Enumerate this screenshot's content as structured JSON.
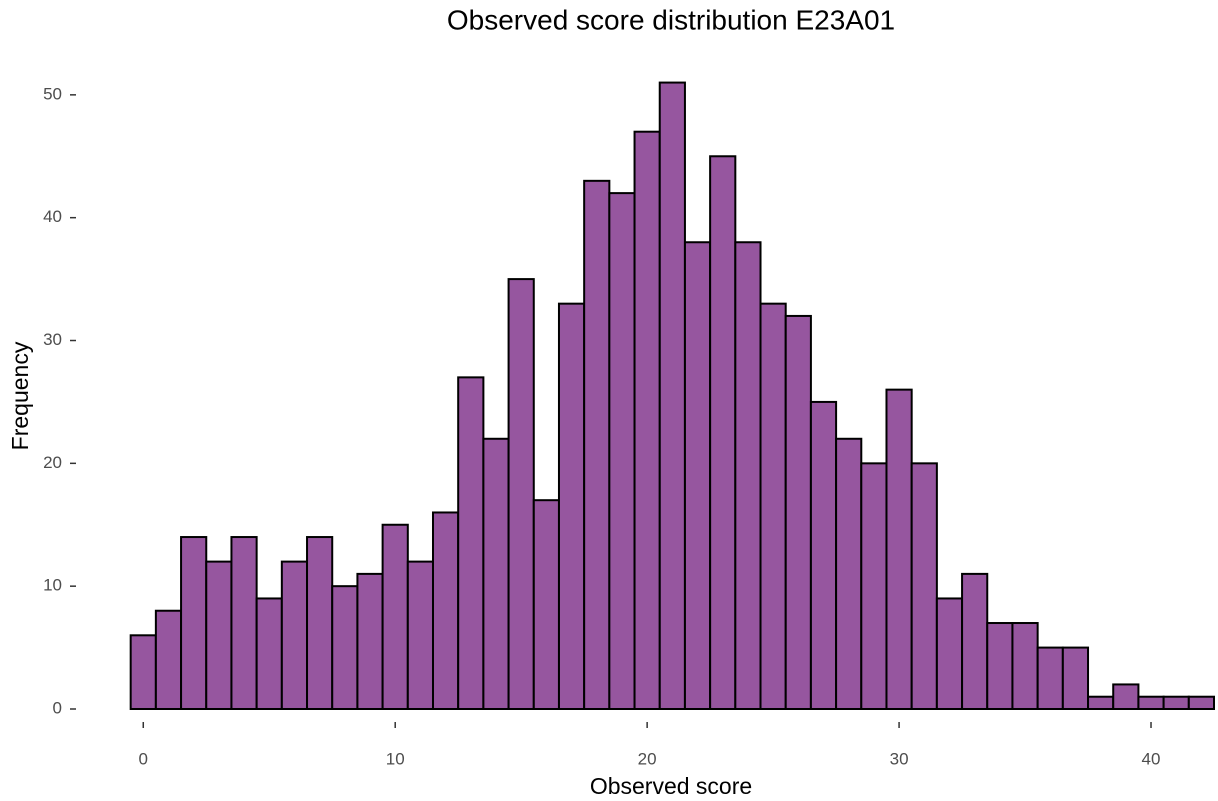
{
  "chart_data": {
    "type": "histogram",
    "title": "Observed score distribution E23A01",
    "x_label": "Observed score",
    "y_label": "Frequency",
    "bins": [
      -0.5,
      0.5,
      1.5,
      2.5,
      3.5,
      4.5,
      5.5,
      6.5,
      7.5,
      8.5,
      9.5,
      10.5,
      11.5,
      12.5,
      13.5,
      14.5,
      15.5,
      16.5,
      17.5,
      18.5,
      19.5,
      20.5,
      21.5,
      22.5,
      23.5,
      24.5,
      25.5,
      26.5,
      27.5,
      28.5,
      29.5,
      30.5,
      31.5,
      32.5,
      33.5,
      34.5,
      35.5,
      36.5,
      37.5,
      38.5,
      39.5,
      40.5,
      41.5,
      42.5
    ],
    "values": [
      6,
      8,
      14,
      12,
      14,
      9,
      12,
      14,
      10,
      11,
      15,
      12,
      16,
      27,
      22,
      35,
      17,
      33,
      43,
      42,
      47,
      51,
      38,
      45,
      38,
      33,
      32,
      25,
      22,
      20,
      26,
      20,
      9,
      11,
      7,
      7,
      5,
      5,
      1,
      2,
      1,
      1,
      1
    ],
    "color": "#96569f",
    "edge_color": "#000000",
    "xlim": [
      -1.4,
      42.5
    ],
    "xticks": [
      0,
      10,
      20,
      30,
      40
    ],
    "ylim": [
      0,
      53
    ],
    "yticks": [
      0,
      10,
      20,
      30,
      40,
      50
    ],
    "grid": false
  }
}
